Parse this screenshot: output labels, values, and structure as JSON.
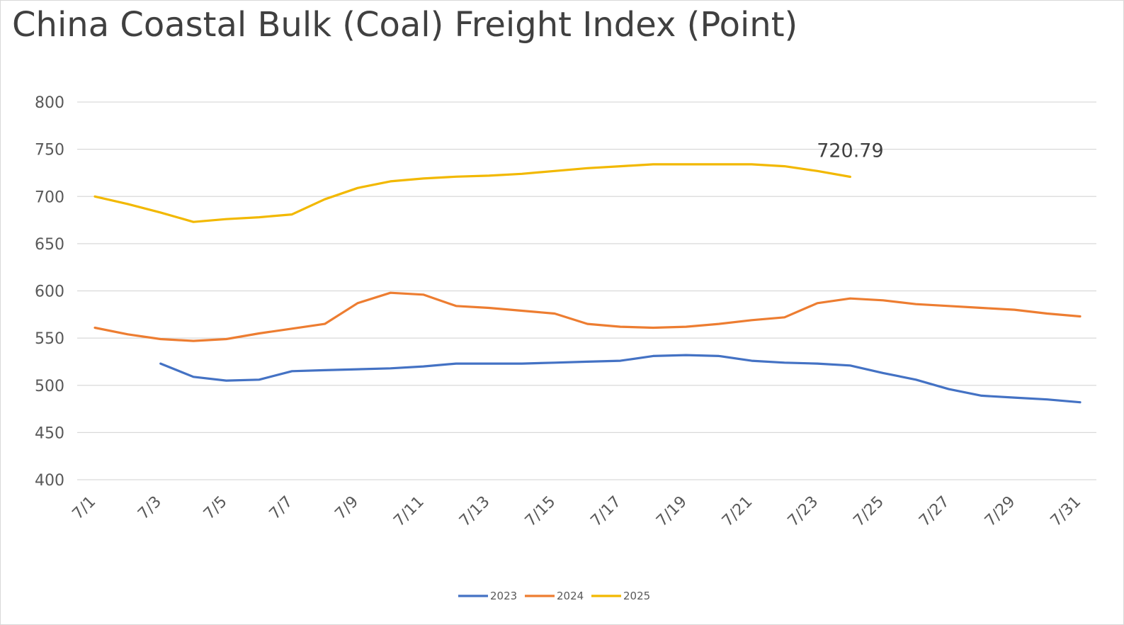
{
  "chart_data": {
    "type": "line",
    "title": "China Coastal Bulk (Coal) Freight Index (Point)",
    "xlabel": "",
    "ylabel": "",
    "ylim": [
      400,
      800
    ],
    "yticks": [
      "800",
      "750",
      "700",
      "650",
      "600",
      "550",
      "500",
      "450",
      "400"
    ],
    "grid": true,
    "legend_position": "bottom",
    "categories": [
      "7/1",
      "7/2",
      "7/3",
      "7/4",
      "7/5",
      "7/6",
      "7/7",
      "7/8",
      "7/9",
      "7/10",
      "7/11",
      "7/12",
      "7/13",
      "7/14",
      "7/15",
      "7/16",
      "7/17",
      "7/18",
      "7/19",
      "7/20",
      "7/21",
      "7/22",
      "7/23",
      "7/24",
      "7/25",
      "7/26",
      "7/27",
      "7/28",
      "7/29",
      "7/30",
      "7/31"
    ],
    "xtick_labels": [
      "7/1",
      "7/3",
      "7/5",
      "7/7",
      "7/9",
      "7/11",
      "7/13",
      "7/15",
      "7/17",
      "7/19",
      "7/21",
      "7/23",
      "7/25",
      "7/27",
      "7/29",
      "7/31"
    ],
    "series": [
      {
        "name": "2023",
        "color": "#4472c4",
        "values": [
          null,
          null,
          523,
          509,
          505,
          506,
          515,
          516,
          517,
          518,
          520,
          523,
          523,
          523,
          524,
          525,
          526,
          531,
          532,
          531,
          526,
          524,
          523,
          521,
          513,
          506,
          496,
          489,
          487,
          485,
          482
        ]
      },
      {
        "name": "2024",
        "color": "#ed7d31",
        "values": [
          561,
          554,
          549,
          547,
          549,
          555,
          560,
          565,
          587,
          598,
          596,
          584,
          582,
          579,
          576,
          565,
          562,
          561,
          562,
          565,
          569,
          572,
          587,
          592,
          590,
          586,
          584,
          582,
          580,
          576,
          573
        ]
      },
      {
        "name": "2025",
        "color": "#f2b800",
        "values": [
          700,
          692,
          683,
          673,
          676,
          678,
          681,
          697,
          709,
          716,
          719,
          721,
          722,
          724,
          727,
          730,
          732,
          734,
          734,
          734,
          734,
          732,
          727,
          720.79,
          null,
          null,
          null,
          null,
          null,
          null,
          null
        ]
      }
    ],
    "annotations": [
      {
        "series": "2025",
        "category": "7/24",
        "text": "720.79"
      }
    ]
  }
}
